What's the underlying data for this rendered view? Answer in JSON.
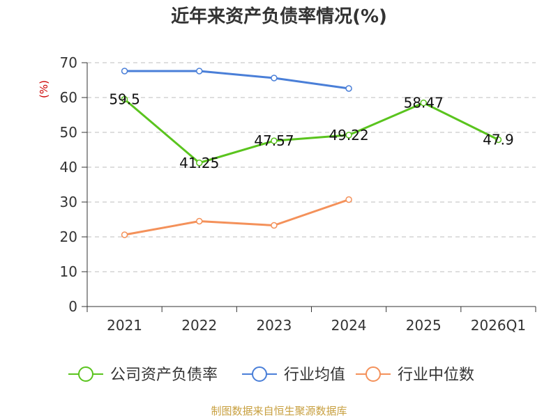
{
  "chart_data": {
    "type": "line",
    "title": "近年来资产负债率情况(%)",
    "ylabel": "(%)",
    "categories": [
      "2021",
      "2022",
      "2023",
      "2024",
      "2025",
      "2026Q1"
    ],
    "ylim": [
      0,
      70
    ],
    "yticks": [
      "0",
      "10",
      "20",
      "30",
      "40",
      "50",
      "60",
      "70"
    ],
    "grid": true,
    "legend_position": "bottom",
    "series": [
      {
        "name": "公司资产负债率",
        "color": "#5ac41e",
        "values": [
          59.5,
          41.25,
          47.57,
          49.22,
          58.47,
          47.9
        ],
        "labels": [
          "59.5",
          "41.25",
          "47.57",
          "49.22",
          "58.47",
          "47.9"
        ]
      },
      {
        "name": "行业均值",
        "color": "#4a7fd8",
        "values": [
          67.6,
          67.6,
          65.6,
          62.6,
          null,
          null
        ]
      },
      {
        "name": "行业中位数",
        "color": "#f4915a",
        "values": [
          20.6,
          24.5,
          23.3,
          30.7,
          null,
          null
        ]
      }
    ],
    "source": "制图数据来自恒生聚源数据库"
  }
}
